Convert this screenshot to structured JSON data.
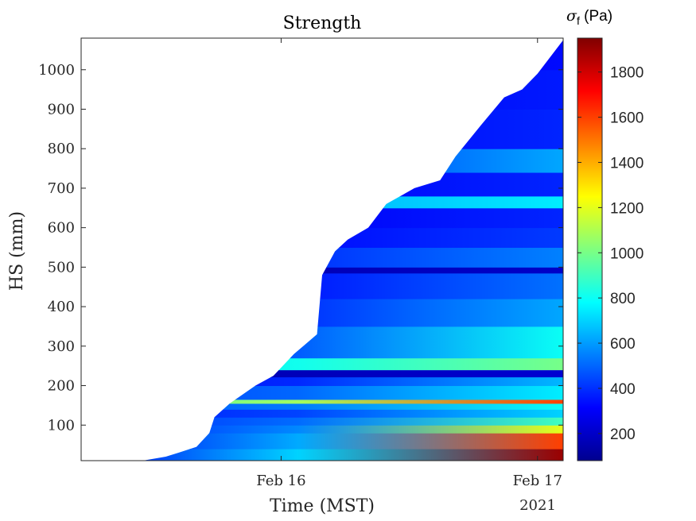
{
  "chart_data": {
    "type": "heatmap",
    "title": "Strength",
    "xlabel": "Time (MST)",
    "ylabel": "HS (mm)",
    "x_ticks": [
      "Feb 16",
      "Feb 17"
    ],
    "x_year_label": "2021",
    "y_ticks": [
      100,
      200,
      300,
      400,
      500,
      600,
      700,
      800,
      900,
      1000
    ],
    "y_range": [
      10,
      1080
    ],
    "colorbar": {
      "label_symbol": "σ",
      "label_subscript": "f",
      "label_unit": " (Pa)",
      "colormap": "jet",
      "range": [
        80,
        1950
      ],
      "ticks": [
        200,
        400,
        600,
        800,
        1000,
        1200,
        1400,
        1600,
        1800
      ]
    },
    "x_range_days": [
      -0.78,
      1.1
    ],
    "snow_height_profile": [
      {
        "t": -0.55,
        "hs": 0
      },
      {
        "t": -0.54,
        "hs": 10
      },
      {
        "t": -0.45,
        "hs": 20
      },
      {
        "t": -0.4,
        "hs": 30
      },
      {
        "t": -0.33,
        "hs": 45
      },
      {
        "t": -0.28,
        "hs": 80
      },
      {
        "t": -0.26,
        "hs": 120
      },
      {
        "t": -0.2,
        "hs": 155
      },
      {
        "t": -0.1,
        "hs": 200
      },
      {
        "t": -0.03,
        "hs": 225
      },
      {
        "t": 0.05,
        "hs": 280
      },
      {
        "t": 0.14,
        "hs": 330
      },
      {
        "t": 0.16,
        "hs": 480
      },
      {
        "t": 0.21,
        "hs": 540
      },
      {
        "t": 0.26,
        "hs": 570
      },
      {
        "t": 0.34,
        "hs": 600
      },
      {
        "t": 0.41,
        "hs": 660
      },
      {
        "t": 0.52,
        "hs": 700
      },
      {
        "t": 0.62,
        "hs": 720
      },
      {
        "t": 0.68,
        "hs": 780
      },
      {
        "t": 0.78,
        "hs": 860
      },
      {
        "t": 0.87,
        "hs": 930
      },
      {
        "t": 0.94,
        "hs": 950
      },
      {
        "t": 1.0,
        "hs": 990
      },
      {
        "t": 1.1,
        "hs": 1075
      }
    ],
    "strength_layers": [
      {
        "hs": 0,
        "start": 300,
        "end": 1900
      },
      {
        "hs": 40,
        "start": 300,
        "end": 1600
      },
      {
        "hs": 80,
        "start": 350,
        "end": 1200
      },
      {
        "hs": 100,
        "start": 380,
        "end": 900
      },
      {
        "hs": 120,
        "start": 350,
        "end": 700
      },
      {
        "hs": 140,
        "start": 450,
        "end": 800
      },
      {
        "hs": 155,
        "start": 900,
        "end": 1600
      },
      {
        "hs": 165,
        "start": 420,
        "end": 750
      },
      {
        "hs": 200,
        "start": 300,
        "end": 650
      },
      {
        "hs": 222,
        "start": 150,
        "end": 220
      },
      {
        "hs": 240,
        "start": 750,
        "end": 1000
      },
      {
        "hs": 270,
        "start": 380,
        "end": 800
      },
      {
        "hs": 350,
        "start": 330,
        "end": 620
      },
      {
        "hs": 420,
        "start": 300,
        "end": 520
      },
      {
        "hs": 485,
        "start": 150,
        "end": 200
      },
      {
        "hs": 500,
        "start": 350,
        "end": 550
      },
      {
        "hs": 550,
        "start": 300,
        "end": 420
      },
      {
        "hs": 600,
        "start": 280,
        "end": 380
      },
      {
        "hs": 650,
        "start": 600,
        "end": 750
      },
      {
        "hs": 680,
        "start": 280,
        "end": 380
      },
      {
        "hs": 740,
        "start": 330,
        "end": 620
      },
      {
        "hs": 800,
        "start": 280,
        "end": 380
      },
      {
        "hs": 900,
        "start": 270,
        "end": 360
      },
      {
        "hs": 1000,
        "start": 260,
        "end": 330
      },
      {
        "hs": 1080,
        "start": 250,
        "end": 300
      }
    ]
  }
}
